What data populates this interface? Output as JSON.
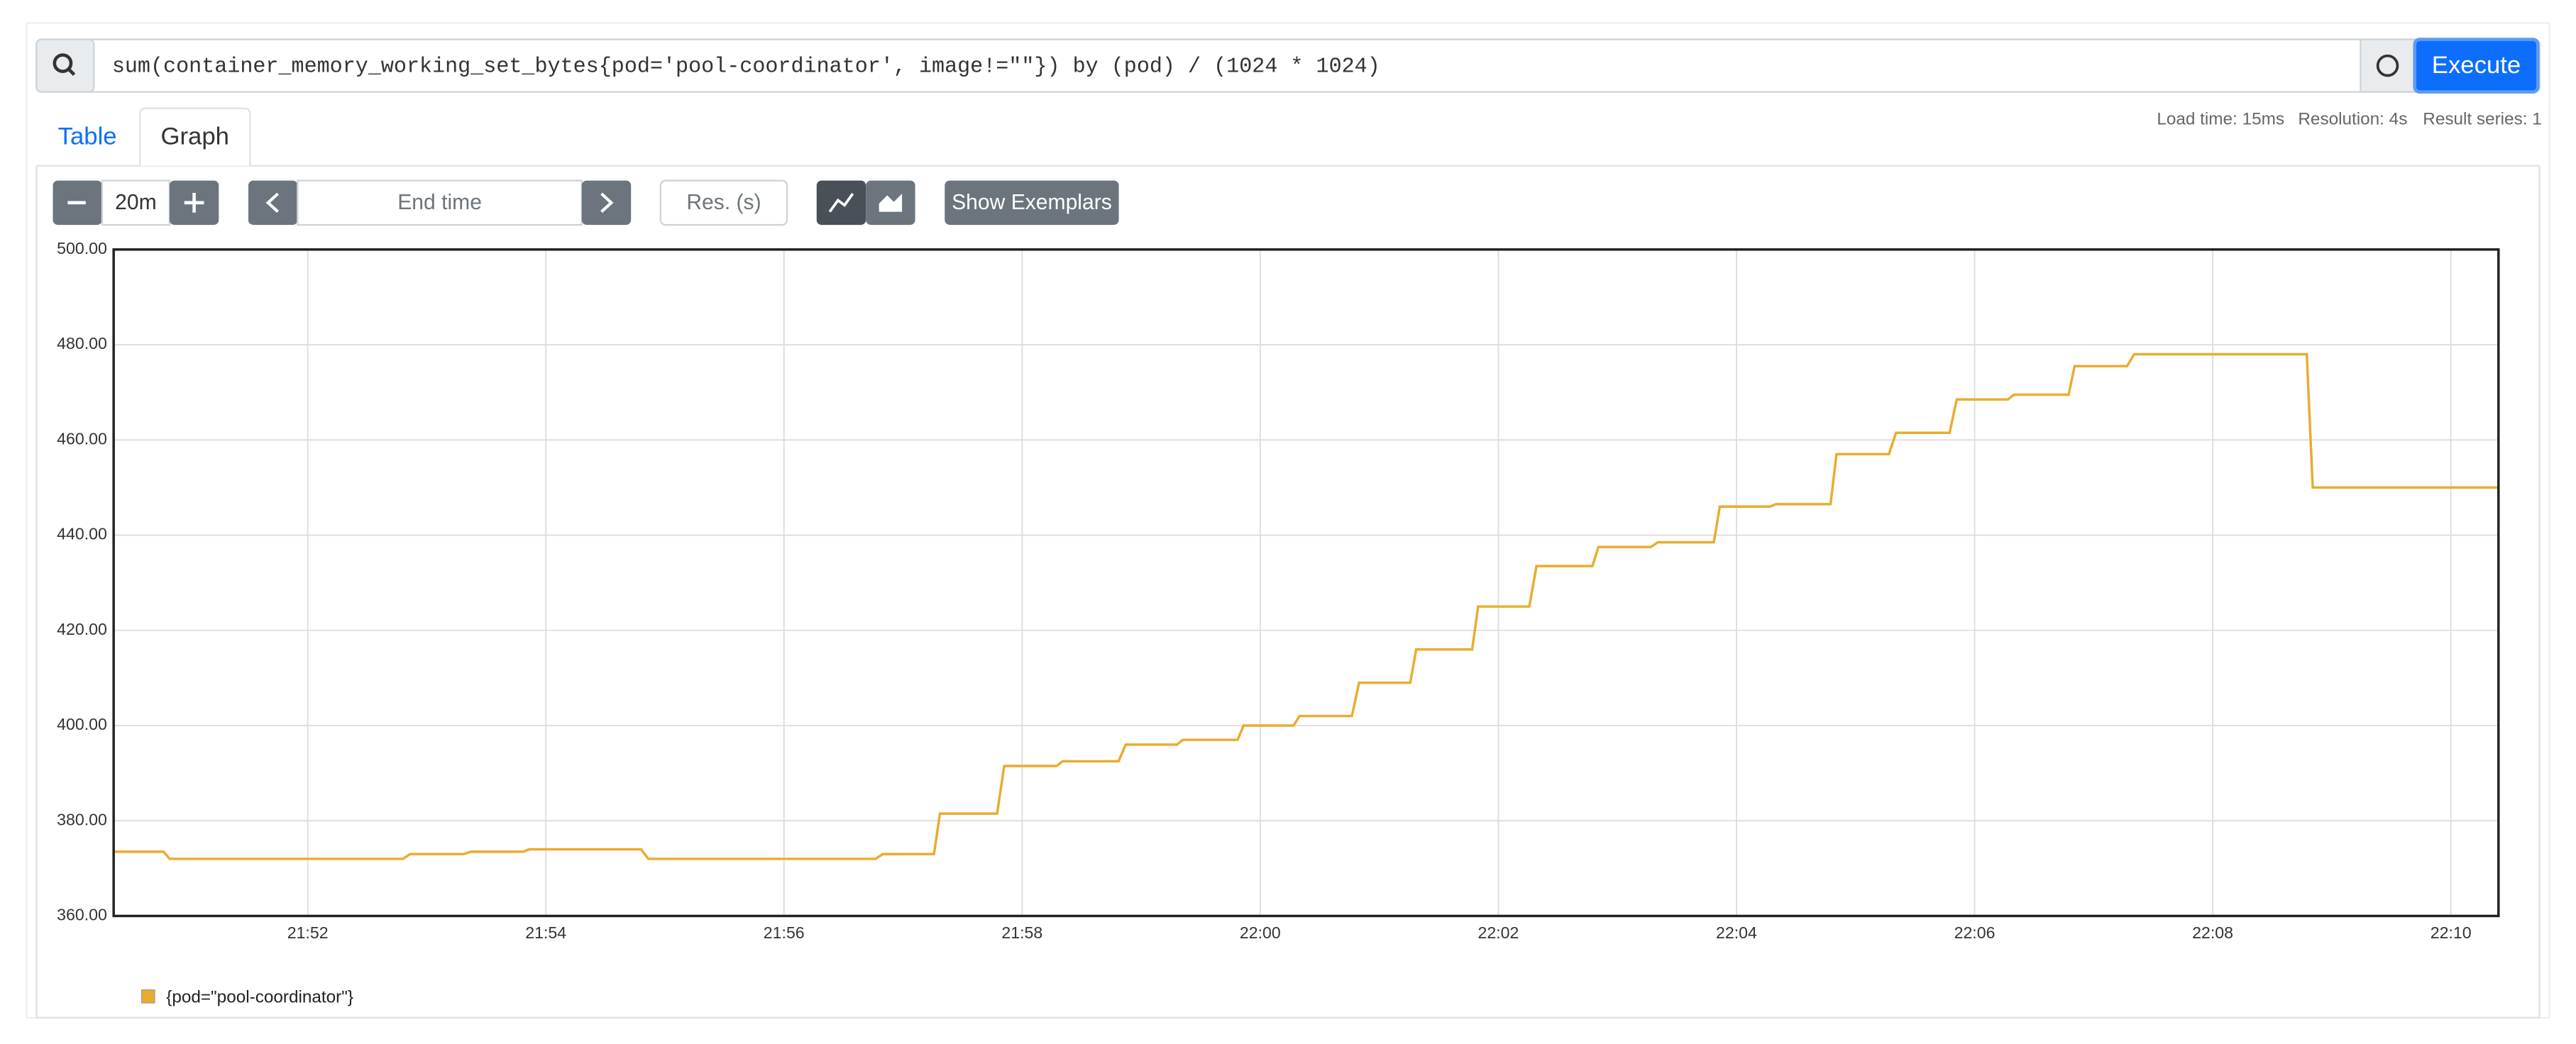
{
  "query": "sum(container_memory_working_set_bytes{pod='pool-coordinator', image!=\"\"}) by (pod) / (1024 * 1024)",
  "execute": "Execute",
  "tabs": [
    "Table",
    "Graph"
  ],
  "stats": [
    "Load time: 15ms",
    "Resolution: 4s",
    "Result series: 1"
  ],
  "controls": {
    "range": "20m",
    "end_time": "End time",
    "resolution": "Res. (s)",
    "exemplars": "Show Exemplars"
  },
  "chart_data": {
    "type": "line",
    "x": [
      1310.37,
      1310.79,
      1310.84,
      1312.8,
      1312.86,
      1313.31,
      1313.37,
      1313.81,
      1313.86,
      1314.8,
      1314.86,
      1316.77,
      1316.83,
      1317.26,
      1317.31,
      1317.79,
      1317.85,
      1318.29,
      1318.34,
      1318.81,
      1318.87,
      1319.3,
      1319.35,
      1319.81,
      1319.86,
      1320.28,
      1320.33,
      1320.77,
      1320.83,
      1321.26,
      1321.31,
      1321.78,
      1321.83,
      1322.26,
      1322.32,
      1322.79,
      1322.84,
      1323.28,
      1323.34,
      1323.81,
      1323.86,
      1324.28,
      1324.33,
      1324.79,
      1324.84,
      1325.28,
      1325.34,
      1325.79,
      1325.85,
      1326.28,
      1326.33,
      1326.79,
      1326.84,
      1327.28,
      1327.34,
      1328.79,
      1328.84,
      1330.4
    ],
    "series": [
      {
        "name": "{pod=\"pool-coordinator\"}",
        "color": "#e9ac2f",
        "values": [
          373.5,
          373.5,
          372,
          372,
          373,
          373,
          373.5,
          373.5,
          374,
          374,
          372,
          372,
          373,
          373,
          381.5,
          381.5,
          391.5,
          391.5,
          392.5,
          392.5,
          396,
          396,
          397,
          397,
          400,
          400,
          402,
          402,
          409,
          409,
          416,
          416,
          425,
          425,
          433.5,
          433.5,
          437.5,
          437.5,
          438.5,
          438.5,
          446,
          446,
          446.5,
          446.5,
          457,
          457,
          461.5,
          461.5,
          468.5,
          468.5,
          469.5,
          469.5,
          475.5,
          475.5,
          478,
          478,
          450,
          450
        ]
      }
    ],
    "xlim": [
      1310.37,
      1330.4
    ],
    "xticks": [
      {
        "value": 1312,
        "label": "21:52"
      },
      {
        "value": 1314,
        "label": "21:54"
      },
      {
        "value": 1316,
        "label": "21:56"
      },
      {
        "value": 1318,
        "label": "21:58"
      },
      {
        "value": 1320,
        "label": "22:00"
      },
      {
        "value": 1322,
        "label": "22:02"
      },
      {
        "value": 1324,
        "label": "22:04"
      },
      {
        "value": 1326,
        "label": "22:06"
      },
      {
        "value": 1328,
        "label": "22:08"
      },
      {
        "value": 1330,
        "label": "22:10"
      }
    ],
    "ylim": [
      360,
      500
    ],
    "yticks": [
      {
        "value": 360,
        "label": "360.00"
      },
      {
        "value": 380,
        "label": "380.00"
      },
      {
        "value": 400,
        "label": "400.00"
      },
      {
        "value": 420,
        "label": "420.00"
      },
      {
        "value": 440,
        "label": "440.00"
      },
      {
        "value": 460,
        "label": "460.00"
      },
      {
        "value": 480,
        "label": "480.00"
      },
      {
        "value": 500,
        "label": "500.00"
      }
    ],
    "grid": true
  }
}
